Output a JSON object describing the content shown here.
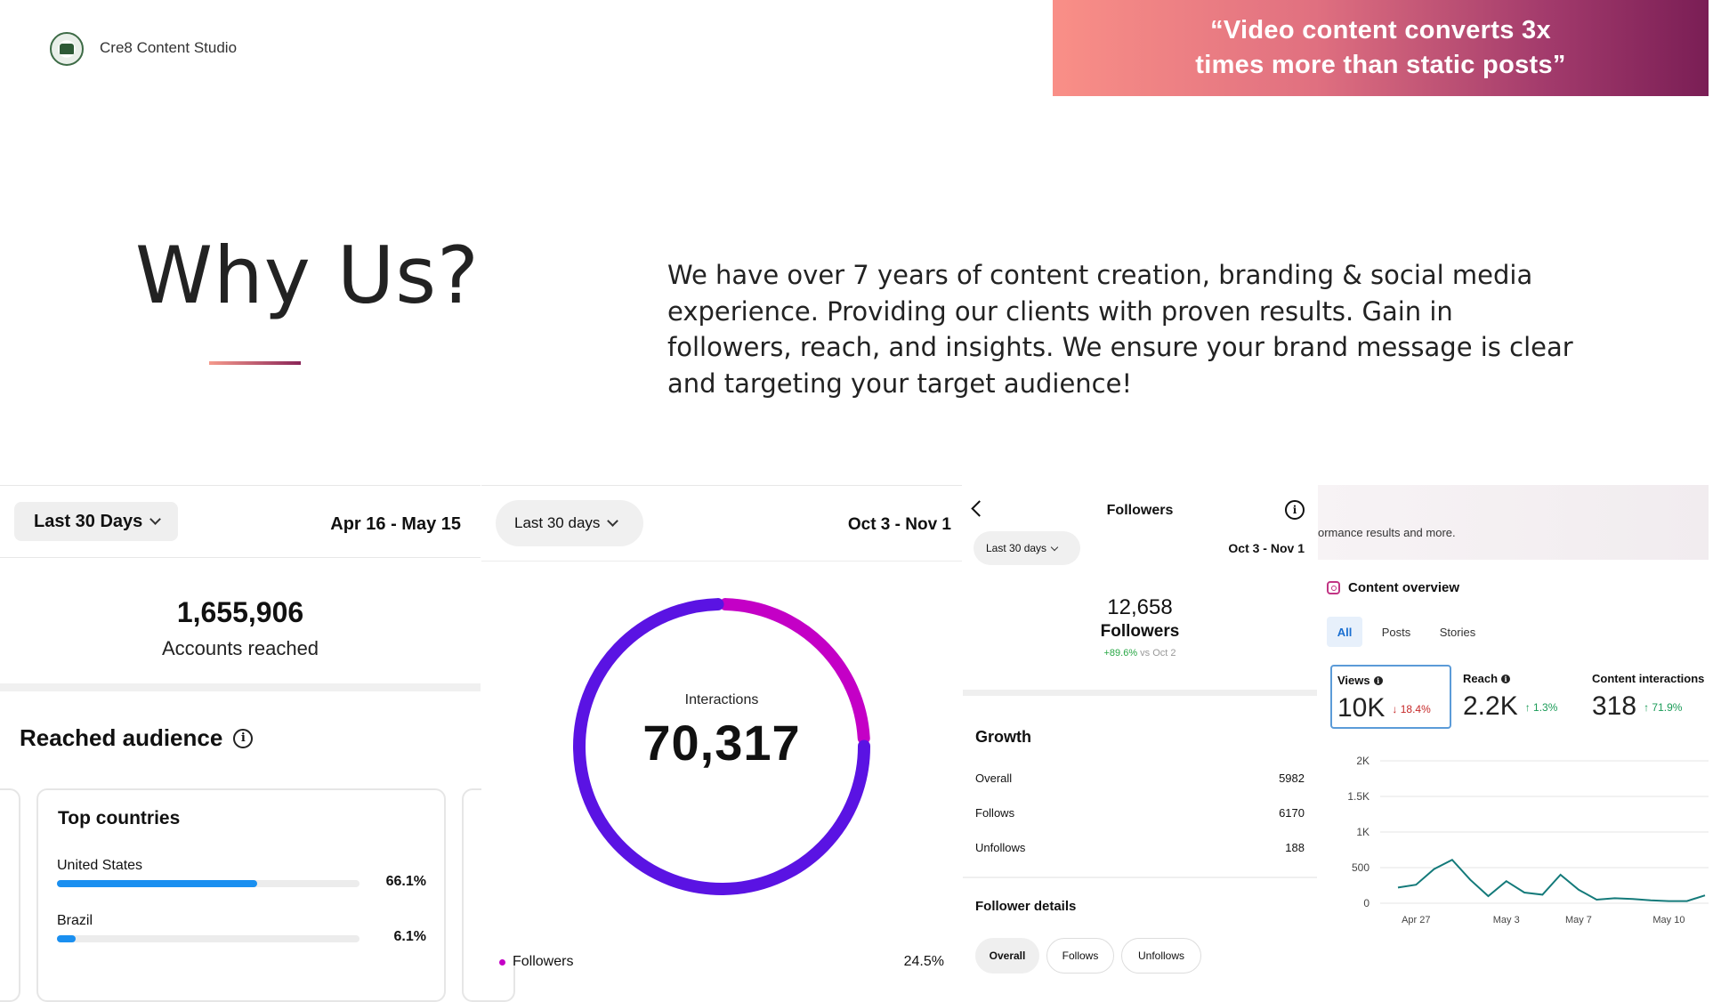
{
  "header": {
    "brand": "Cre8 Content Studio",
    "quote_line1": "“Video content converts 3x",
    "quote_line2": "times more than static posts”"
  },
  "hero": {
    "title": "Why Us?",
    "description": "We have over 7 years of content creation, branding & social media experience.  Providing our clients with proven results. Gain in followers, reach, and insights. We ensure your brand message is clear and targeting your target audience!"
  },
  "panel1": {
    "range_label": "Last 30 Days",
    "date_range": "Apr 16 - May 15",
    "reach_value": "1,655,906",
    "reach_label": "Accounts reached",
    "audience_title": "Reached audience",
    "card_title": "Top countries",
    "countries": [
      {
        "name": "United States",
        "pct_label": "66.1%",
        "pct": 66.1
      },
      {
        "name": "Brazil",
        "pct_label": "6.1%",
        "pct": 6.1
      }
    ],
    "bar_color": "#1a8ff0"
  },
  "panel2": {
    "range_label": "Last 30 days",
    "date_range": "Oct 3 - Nov 1",
    "center_label": "Interactions",
    "center_value": "70,317",
    "legend_label": "Followers",
    "legend_pct": "24.5%",
    "segments": [
      {
        "share": 24.5,
        "color": "#c400c6"
      },
      {
        "share": 75.5,
        "color": "#5a13e3"
      }
    ]
  },
  "panel3": {
    "title": "Followers",
    "range_label": "Last 30 days",
    "date_range": "Oct 3 - Nov 1",
    "followers_value": "12,658",
    "followers_label": "Followers",
    "delta_pos": "+89.6%",
    "delta_rest": " vs Oct 2",
    "growth_title": "Growth",
    "growth_rows": [
      {
        "label": "Overall",
        "value": "5982"
      },
      {
        "label": "Follows",
        "value": "6170"
      },
      {
        "label": "Unfollows",
        "value": "188"
      }
    ],
    "details_title": "Follower details",
    "pills": [
      "Overall",
      "Follows",
      "Unfollows"
    ]
  },
  "panel4": {
    "band_text": "ormance results and more.",
    "section_title": "Content overview",
    "tabs": [
      "All",
      "Posts",
      "Stories"
    ],
    "metrics": [
      {
        "label": "Views",
        "value": "10K",
        "delta": "↓ 18.4%",
        "dir": "down"
      },
      {
        "label": "Reach",
        "value": "2.2K",
        "delta": "↑ 1.3%",
        "dir": "up"
      },
      {
        "label": "Content interactions",
        "value": "318",
        "delta": "↑ 71.9%",
        "dir": "up"
      }
    ],
    "line_color": "#147a7a"
  },
  "chart_data": {
    "type": "line",
    "ylim": [
      0,
      2000
    ],
    "yticks": [
      "2K",
      "1.5K",
      "1K",
      "500",
      "0"
    ],
    "xlabels": [
      "Apr 27",
      "May 3",
      "May 7",
      "May 10"
    ],
    "series": [
      {
        "values": [
          220,
          260,
          480,
          610,
          330,
          100,
          310,
          150,
          120,
          400,
          190,
          50,
          70,
          60,
          40,
          30,
          30,
          110
        ]
      }
    ],
    "grid": true
  }
}
